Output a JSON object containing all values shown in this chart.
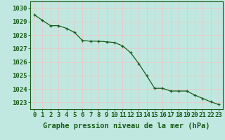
{
  "x": [
    0,
    1,
    2,
    3,
    4,
    5,
    6,
    7,
    8,
    9,
    10,
    11,
    12,
    13,
    14,
    15,
    16,
    17,
    18,
    19,
    20,
    21,
    22,
    23
  ],
  "y": [
    1029.5,
    1029.1,
    1028.7,
    1028.7,
    1028.5,
    1028.2,
    1027.6,
    1027.55,
    1027.55,
    1027.5,
    1027.45,
    1027.2,
    1026.7,
    1025.9,
    1025.0,
    1024.05,
    1024.05,
    1023.85,
    1023.85,
    1023.85,
    1023.55,
    1023.3,
    1023.05,
    1022.85
  ],
  "line_color": "#1a5c1a",
  "marker_color": "#1a5c1a",
  "bg_color": "#c0e8e0",
  "grid_color": "#e8c8c8",
  "tick_label_color": "#1a5c1a",
  "xlabel": "Graphe pression niveau de la mer (hPa)",
  "xlabel_color": "#1a5c1a",
  "ylim_min": 1022.5,
  "ylim_max": 1030.5,
  "yticks": [
    1023,
    1024,
    1025,
    1026,
    1027,
    1028,
    1029,
    1030
  ],
  "xticks": [
    0,
    1,
    2,
    3,
    4,
    5,
    6,
    7,
    8,
    9,
    10,
    11,
    12,
    13,
    14,
    15,
    16,
    17,
    18,
    19,
    20,
    21,
    22,
    23
  ],
  "font_size_ticks": 6.5,
  "font_size_xlabel": 7.5
}
